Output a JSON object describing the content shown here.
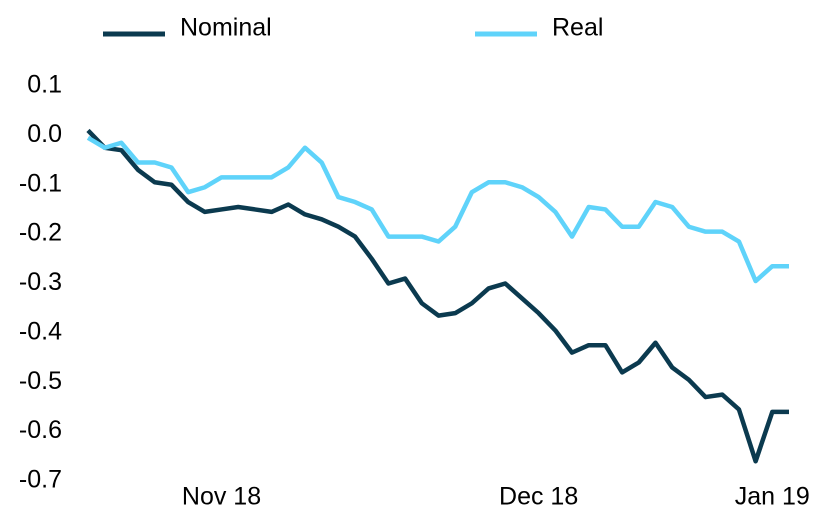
{
  "chart_data": {
    "type": "line",
    "categories": [
      null,
      null,
      null,
      null,
      null,
      null,
      null,
      null,
      "Nov 18",
      null,
      null,
      null,
      null,
      null,
      null,
      null,
      null,
      null,
      null,
      null,
      null,
      null,
      null,
      null,
      null,
      null,
      null,
      "Dec 18",
      null,
      null,
      null,
      null,
      null,
      null,
      null,
      null,
      null,
      null,
      null,
      null,
      null,
      "Jan 19",
      null
    ],
    "series": [
      {
        "name": "Nominal",
        "color": "#0b3a4f",
        "values": [
          0.01,
          -0.025,
          -0.03,
          -0.07,
          -0.095,
          -0.1,
          -0.135,
          -0.155,
          -0.15,
          -0.145,
          -0.15,
          -0.155,
          -0.14,
          -0.16,
          -0.17,
          -0.185,
          -0.205,
          -0.25,
          -0.3,
          -0.29,
          -0.34,
          -0.365,
          -0.36,
          -0.34,
          -0.31,
          -0.3,
          -0.33,
          -0.36,
          -0.395,
          -0.44,
          -0.425,
          -0.425,
          -0.48,
          -0.46,
          -0.42,
          -0.47,
          -0.495,
          -0.53,
          -0.525,
          -0.555,
          -0.66,
          -0.56,
          -0.56
        ]
      },
      {
        "name": "Real",
        "color": "#5fd3fa",
        "values": [
          -0.005,
          -0.025,
          -0.015,
          -0.055,
          -0.055,
          -0.065,
          -0.115,
          -0.105,
          -0.085,
          -0.085,
          -0.085,
          -0.085,
          -0.065,
          -0.025,
          -0.055,
          -0.125,
          -0.135,
          -0.15,
          -0.205,
          -0.205,
          -0.205,
          -0.215,
          -0.185,
          -0.115,
          -0.095,
          -0.095,
          -0.105,
          -0.125,
          -0.155,
          -0.205,
          -0.145,
          -0.15,
          -0.185,
          -0.185,
          -0.135,
          -0.145,
          -0.185,
          -0.195,
          -0.195,
          -0.215,
          -0.295,
          -0.265,
          -0.265
        ]
      }
    ],
    "ylim": [
      -0.7,
      0.1
    ],
    "yticks": [
      0.1,
      {
        "value": 0,
        "label": "0.0"
      },
      -0.1,
      -0.2,
      -0.3,
      -0.4,
      -0.5,
      -0.6,
      -0.7
    ],
    "grid": false
  }
}
